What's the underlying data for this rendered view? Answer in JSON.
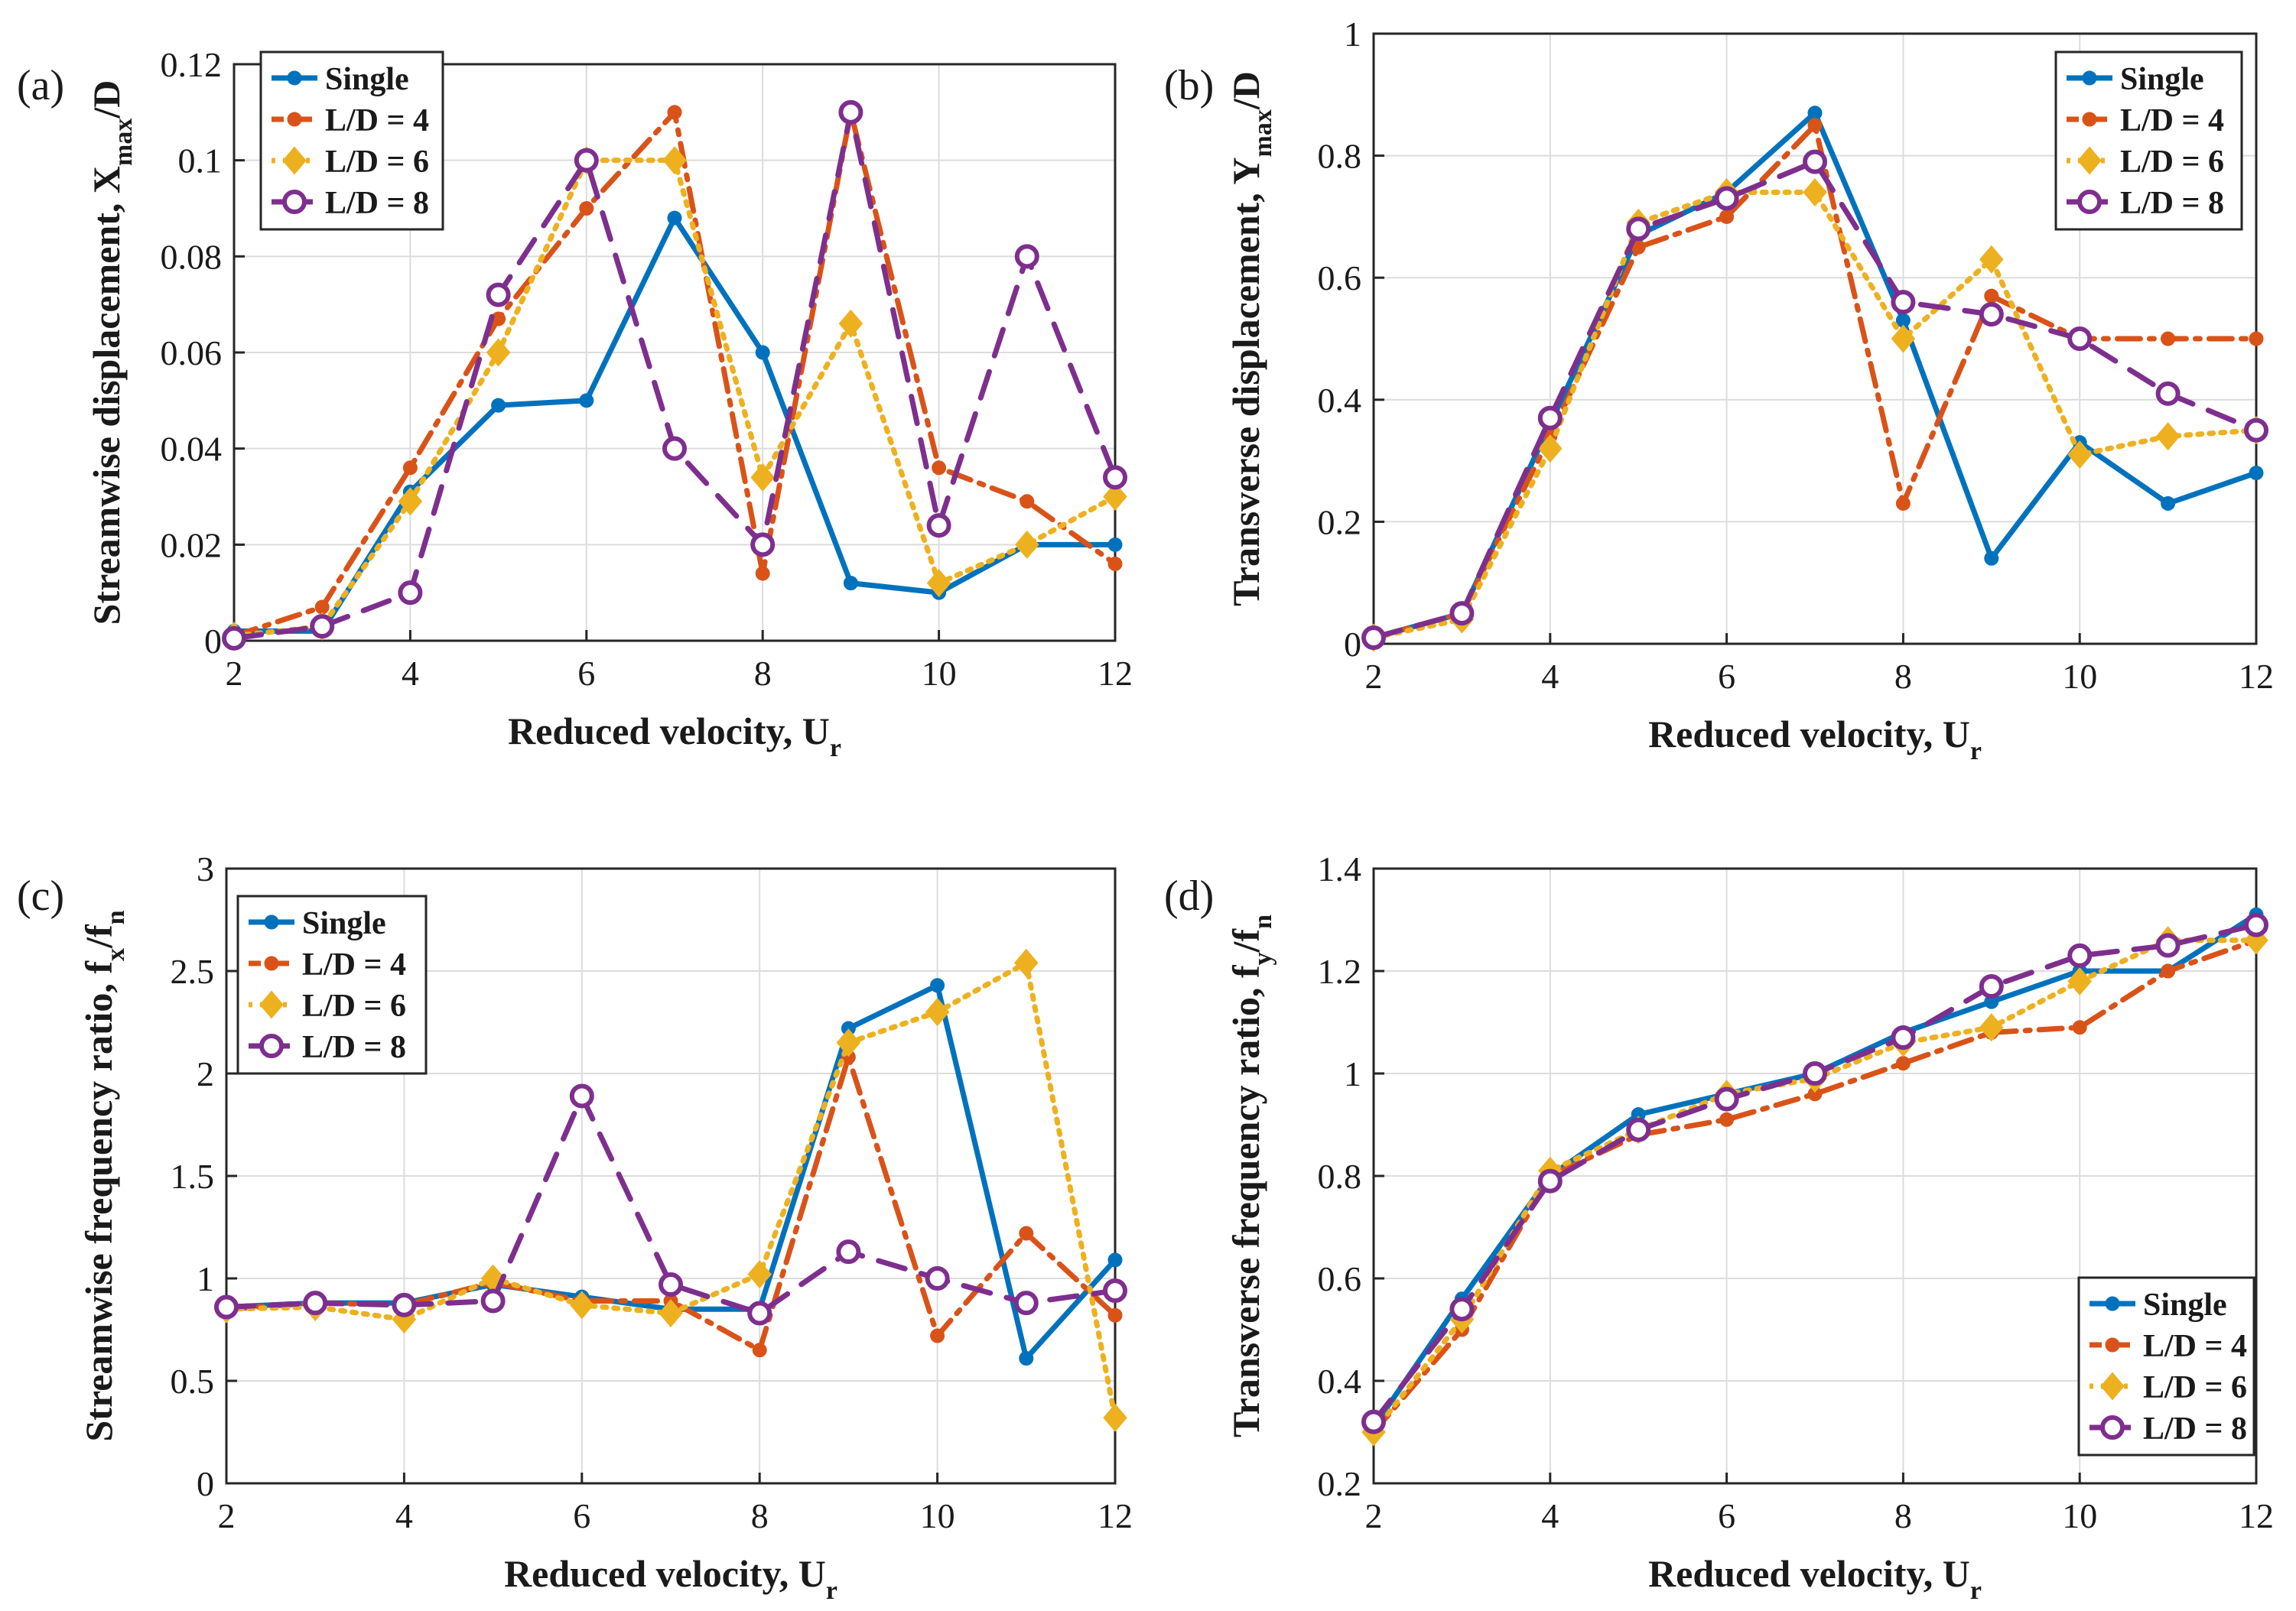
{
  "colors": {
    "single": "#0072BD",
    "ld4": "#D95319",
    "ld6": "#EDB120",
    "ld8": "#7E2F8E",
    "grid": "#dcdcdc",
    "axis": "#262626"
  },
  "chart_data": [
    {
      "type": "line",
      "panel": "(a)",
      "ylabel": "Streamwise displacement, X",
      "ylabel_sub": "max",
      "ylabel_tail": "/D",
      "xlabel": "Reduced velocity, U",
      "xlabel_sub": "r",
      "xlim": [
        2,
        12
      ],
      "ylim": [
        0,
        0.12
      ],
      "xticks": [
        2,
        4,
        6,
        8,
        10,
        12
      ],
      "xtick_labels": [
        "2",
        "4",
        "6",
        "8",
        "10",
        "12"
      ],
      "yticks": [
        0,
        0.02,
        0.04,
        0.06,
        0.08,
        0.1,
        0.12
      ],
      "ytick_labels": [
        "0",
        "0.02",
        "0.04",
        "0.06",
        "0.08",
        "0.1",
        "0.12"
      ],
      "grid": true,
      "legend_position": "top-left",
      "series": [
        {
          "name": "Single",
          "x": [
            2,
            3,
            4,
            5,
            6,
            7,
            8,
            9,
            10,
            11,
            12
          ],
          "y": [
            0.002,
            0.002,
            0.031,
            0.049,
            0.05,
            0.088,
            0.06,
            0.012,
            0.01,
            0.02,
            0.02
          ]
        },
        {
          "name": "L/D = 4",
          "x": [
            2,
            3,
            4,
            5,
            6,
            7,
            8,
            9,
            10,
            11,
            12
          ],
          "y": [
            0.001,
            0.007,
            0.036,
            0.067,
            0.09,
            0.11,
            0.014,
            0.11,
            0.036,
            0.029,
            0.016
          ]
        },
        {
          "name": "L/D = 6",
          "x": [
            2,
            3,
            4,
            5,
            6,
            7,
            8,
            9,
            10,
            11,
            12
          ],
          "y": [
            0.001,
            0.003,
            0.029,
            0.06,
            0.1,
            0.1,
            0.034,
            0.066,
            0.012,
            0.02,
            0.03
          ]
        },
        {
          "name": "L/D = 8",
          "x": [
            2,
            3,
            4,
            5,
            6,
            7,
            8,
            9,
            10,
            11,
            12
          ],
          "y": [
            0.0005,
            0.003,
            0.01,
            0.072,
            0.1,
            0.04,
            0.02,
            0.11,
            0.024,
            0.08,
            0.034
          ]
        }
      ]
    },
    {
      "type": "line",
      "panel": "(b)",
      "ylabel": "Transverse displacement, Y",
      "ylabel_sub": "max",
      "ylabel_tail": "/D",
      "xlabel": "Reduced velocity, U",
      "xlabel_sub": "r",
      "xlim": [
        2,
        12
      ],
      "ylim": [
        0,
        1
      ],
      "xticks": [
        2,
        4,
        6,
        8,
        10,
        12
      ],
      "xtick_labels": [
        "2",
        "4",
        "6",
        "8",
        "10",
        "12"
      ],
      "yticks": [
        0,
        0.2,
        0.4,
        0.6,
        0.8,
        1
      ],
      "ytick_labels": [
        "0",
        "0.2",
        "0.4",
        "0.6",
        "0.8",
        "1"
      ],
      "grid": true,
      "legend_position": "top-right",
      "series": [
        {
          "name": "Single",
          "x": [
            2,
            3,
            4,
            5,
            6,
            7,
            8,
            9,
            10,
            11,
            12
          ],
          "y": [
            0.01,
            0.05,
            0.36,
            0.67,
            0.74,
            0.87,
            0.53,
            0.14,
            0.33,
            0.23,
            0.28
          ]
        },
        {
          "name": "L/D = 4",
          "x": [
            2,
            3,
            4,
            5,
            6,
            7,
            8,
            9,
            10,
            11,
            12
          ],
          "y": [
            0.01,
            0.05,
            0.34,
            0.65,
            0.7,
            0.85,
            0.23,
            0.57,
            0.5,
            0.5,
            0.5
          ]
        },
        {
          "name": "L/D = 6",
          "x": [
            2,
            3,
            4,
            5,
            6,
            7,
            8,
            9,
            10,
            11,
            12
          ],
          "y": [
            0.01,
            0.04,
            0.32,
            0.69,
            0.74,
            0.74,
            0.5,
            0.63,
            0.31,
            0.34,
            0.35
          ]
        },
        {
          "name": "L/D = 8",
          "x": [
            2,
            3,
            4,
            5,
            6,
            7,
            8,
            9,
            10,
            11,
            12
          ],
          "y": [
            0.01,
            0.05,
            0.37,
            0.68,
            0.73,
            0.79,
            0.56,
            0.54,
            0.5,
            0.41,
            0.35
          ]
        }
      ]
    },
    {
      "type": "line",
      "panel": "(c)",
      "ylabel": "Streamwise frequency ratio, f",
      "ylabel_sub": "x",
      "ylabel_tail": "/f",
      "ylabel_sub2": "n",
      "xlabel": "Reduced velocity, U",
      "xlabel_sub": "r",
      "xlim": [
        2,
        12
      ],
      "ylim": [
        0,
        3
      ],
      "xticks": [
        2,
        4,
        6,
        8,
        10,
        12
      ],
      "xtick_labels": [
        "2",
        "4",
        "6",
        "8",
        "10",
        "12"
      ],
      "yticks": [
        0,
        0.5,
        1,
        1.5,
        2,
        2.5,
        3
      ],
      "ytick_labels": [
        "0",
        "0.5",
        "1",
        "1.5",
        "2",
        "2.5",
        "3"
      ],
      "grid": true,
      "legend_position": "top-left",
      "series": [
        {
          "name": "Single",
          "x": [
            2,
            3,
            4,
            5,
            6,
            7,
            8,
            9,
            10,
            11,
            12
          ],
          "y": [
            0.86,
            0.88,
            0.88,
            0.97,
            0.91,
            0.85,
            0.85,
            2.22,
            2.43,
            0.61,
            1.09
          ]
        },
        {
          "name": "L/D = 4",
          "x": [
            2,
            3,
            4,
            5,
            6,
            7,
            8,
            9,
            10,
            11,
            12
          ],
          "y": [
            0.85,
            0.88,
            0.87,
            0.98,
            0.89,
            0.89,
            0.65,
            2.08,
            0.72,
            1.22,
            0.82
          ]
        },
        {
          "name": "L/D = 6",
          "x": [
            2,
            3,
            4,
            5,
            6,
            7,
            8,
            9,
            10,
            11,
            12
          ],
          "y": [
            0.85,
            0.86,
            0.8,
            1.0,
            0.87,
            0.83,
            1.02,
            2.15,
            2.3,
            2.54,
            0.32
          ]
        },
        {
          "name": "L/D = 8",
          "x": [
            2,
            3,
            4,
            5,
            6,
            7,
            8,
            9,
            10,
            11,
            12
          ],
          "y": [
            0.86,
            0.88,
            0.87,
            0.89,
            1.89,
            0.97,
            0.83,
            1.13,
            1.0,
            0.88,
            0.94
          ]
        }
      ]
    },
    {
      "type": "line",
      "panel": "(d)",
      "ylabel": "Transverse frequency ratio, f",
      "ylabel_sub": "y",
      "ylabel_tail": "/f",
      "ylabel_sub2": "n",
      "xlabel": "Reduced velocity, U",
      "xlabel_sub": "r",
      "xlim": [
        2,
        12
      ],
      "ylim": [
        0.2,
        1.4
      ],
      "xticks": [
        2,
        4,
        6,
        8,
        10,
        12
      ],
      "xtick_labels": [
        "2",
        "4",
        "6",
        "8",
        "10",
        "12"
      ],
      "yticks": [
        0.2,
        0.4,
        0.6,
        0.8,
        1,
        1.2,
        1.4
      ],
      "ytick_labels": [
        "0.2",
        "0.4",
        "0.6",
        "0.8",
        "1",
        "1.2",
        "1.4"
      ],
      "grid": true,
      "legend_position": "bottom-right",
      "series": [
        {
          "name": "Single",
          "x": [
            2,
            3,
            4,
            5,
            6,
            7,
            8,
            9,
            10,
            11,
            12
          ],
          "y": [
            0.31,
            0.56,
            0.8,
            0.92,
            0.96,
            1.0,
            1.08,
            1.14,
            1.2,
            1.2,
            1.31
          ]
        },
        {
          "name": "L/D = 4",
          "x": [
            2,
            3,
            4,
            5,
            6,
            7,
            8,
            9,
            10,
            11,
            12
          ],
          "y": [
            0.3,
            0.5,
            0.8,
            0.88,
            0.91,
            0.96,
            1.02,
            1.08,
            1.09,
            1.2,
            1.26
          ]
        },
        {
          "name": "L/D = 6",
          "x": [
            2,
            3,
            4,
            5,
            6,
            7,
            8,
            9,
            10,
            11,
            12
          ],
          "y": [
            0.3,
            0.52,
            0.81,
            0.89,
            0.96,
            0.99,
            1.06,
            1.09,
            1.18,
            1.26,
            1.26
          ]
        },
        {
          "name": "L/D = 8",
          "x": [
            2,
            3,
            4,
            5,
            6,
            7,
            8,
            9,
            10,
            11,
            12
          ],
          "y": [
            0.32,
            0.54,
            0.79,
            0.89,
            0.95,
            1.0,
            1.07,
            1.17,
            1.23,
            1.25,
            1.29
          ]
        }
      ]
    }
  ]
}
